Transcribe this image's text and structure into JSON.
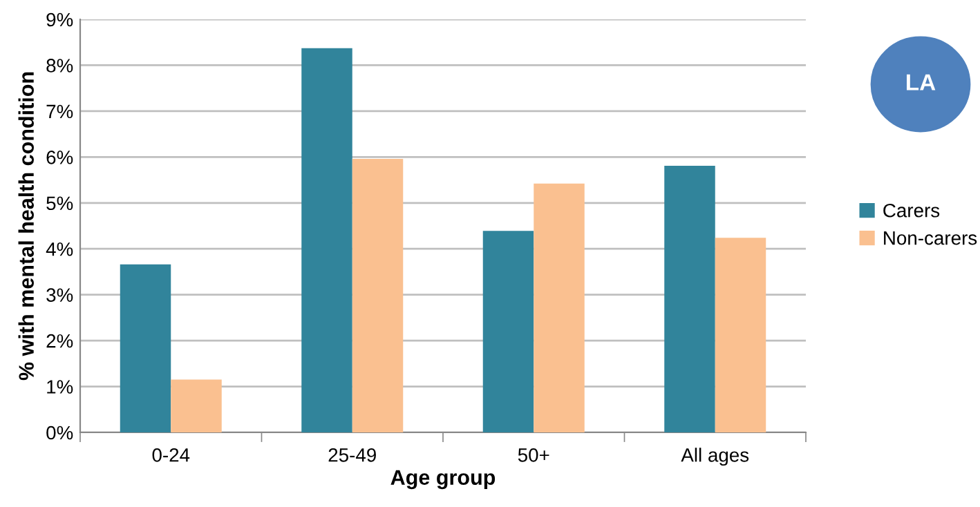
{
  "chart_data": {
    "type": "bar",
    "xlabel": "Age group",
    "ylabel": "% with mental health condition",
    "categories": [
      "0-24",
      "25-49",
      "50+",
      "All ages"
    ],
    "series": [
      {
        "name": "Carers",
        "color": "#31849b",
        "values": [
          3.66,
          8.37,
          4.39,
          5.81
        ]
      },
      {
        "name": "Non-carers",
        "color": "#fac090",
        "values": [
          1.15,
          5.96,
          5.42,
          4.24
        ]
      }
    ],
    "ylim": [
      0,
      9
    ],
    "yticks": [
      {
        "value": 0,
        "label": "0%"
      },
      {
        "value": 1,
        "label": "1%"
      },
      {
        "value": 2,
        "label": "2%"
      },
      {
        "value": 3,
        "label": "3%"
      },
      {
        "value": 4,
        "label": "4%"
      },
      {
        "value": 5,
        "label": "5%"
      },
      {
        "value": 6,
        "label": "6%"
      },
      {
        "value": 7,
        "label": "7%"
      },
      {
        "value": 8,
        "label": "8%"
      },
      {
        "value": 9,
        "label": "9%"
      }
    ],
    "grid": "y",
    "legend": "right",
    "annotations": [
      "LA"
    ]
  }
}
